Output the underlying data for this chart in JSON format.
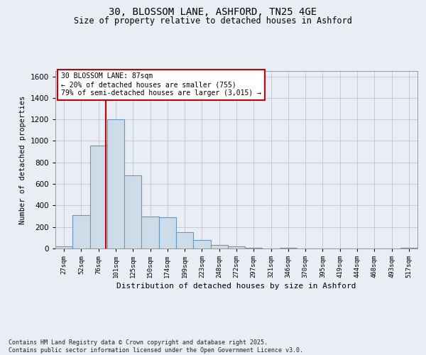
{
  "title_line1": "30, BLOSSOM LANE, ASHFORD, TN25 4GE",
  "title_line2": "Size of property relative to detached houses in Ashford",
  "xlabel": "Distribution of detached houses by size in Ashford",
  "ylabel": "Number of detached properties",
  "bin_labels": [
    "27sqm",
    "52sqm",
    "76sqm",
    "101sqm",
    "125sqm",
    "150sqm",
    "174sqm",
    "199sqm",
    "223sqm",
    "248sqm",
    "272sqm",
    "297sqm",
    "321sqm",
    "346sqm",
    "370sqm",
    "395sqm",
    "419sqm",
    "444sqm",
    "468sqm",
    "493sqm",
    "517sqm"
  ],
  "bar_values": [
    20,
    310,
    960,
    1200,
    680,
    300,
    290,
    155,
    80,
    30,
    20,
    5,
    0,
    5,
    0,
    0,
    0,
    0,
    0,
    0,
    5
  ],
  "bar_color": "#ccdce8",
  "bar_edge_color": "#6699bb",
  "vline_color": "#cc0000",
  "ylim": [
    0,
    1650
  ],
  "yticks": [
    0,
    200,
    400,
    600,
    800,
    1000,
    1200,
    1400,
    1600
  ],
  "annotation_text": "30 BLOSSOM LANE: 87sqm\n← 20% of detached houses are smaller (755)\n79% of semi-detached houses are larger (3,015) →",
  "annotation_box_color": "#ffffff",
  "annotation_box_edge": "#cc0000",
  "footer_text": "Contains HM Land Registry data © Crown copyright and database right 2025.\nContains public sector information licensed under the Open Government Licence v3.0.",
  "bg_color": "#e8eef4",
  "plot_bg_color": "#e8eef4",
  "fig_width": 6.0,
  "fig_height": 5.0,
  "dpi": 100
}
